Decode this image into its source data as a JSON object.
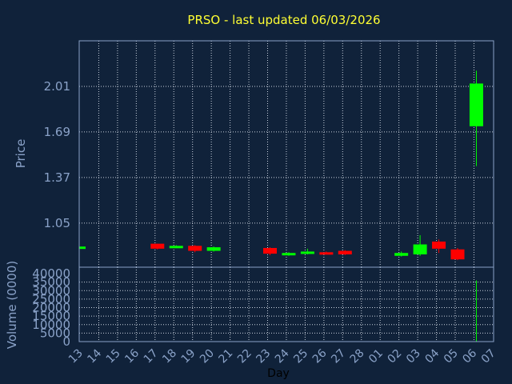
{
  "chart_data": {
    "type": "candlestick",
    "title": "PRSO - last updated 06/03/2026",
    "xlabel": "Day",
    "ylabel": "Price",
    "volume_label": "Volume (0000)",
    "x_ticks": [
      "13",
      "14",
      "15",
      "16",
      "17",
      "18",
      "19",
      "20",
      "21",
      "22",
      "23",
      "24",
      "25",
      "26",
      "27",
      "28",
      "01",
      "02",
      "03",
      "04",
      "05",
      "06",
      "07"
    ],
    "y_ticks": [
      1.05,
      1.37,
      1.69,
      2.01
    ],
    "y_tick_labels": [
      "1.05",
      "1.37",
      "1.69",
      "2.01"
    ],
    "ylim": [
      0.74,
      2.33
    ],
    "volume_ticks": [
      0,
      5000,
      10000,
      15000,
      20000,
      25000,
      30000,
      35000,
      40000
    ],
    "volume_tick_labels": [
      "0",
      "5000",
      "10000",
      "15000",
      "20000",
      "25000",
      "30000",
      "35000",
      "40000"
    ],
    "volume_lim": [
      0,
      40000
    ],
    "grid": true,
    "colors": {
      "up": "#00ff00",
      "down": "#ff0000",
      "title": "#ffff33",
      "axis_text": "#8aa2c8",
      "background": "#10223a"
    },
    "candles": [
      {
        "day": "13",
        "open": 0.885,
        "close": 0.885,
        "high": 0.885,
        "low": 0.885
      },
      {
        "day": "17",
        "open": 0.905,
        "close": 0.87,
        "high": 0.905,
        "low": 0.865
      },
      {
        "day": "18",
        "open": 0.885,
        "close": 0.89,
        "high": 0.895,
        "low": 0.88
      },
      {
        "day": "19",
        "open": 0.89,
        "close": 0.855,
        "high": 0.895,
        "low": 0.845
      },
      {
        "day": "20",
        "open": 0.855,
        "close": 0.88,
        "high": 0.885,
        "low": 0.85
      },
      {
        "day": "23",
        "open": 0.875,
        "close": 0.835,
        "high": 0.88,
        "low": 0.825
      },
      {
        "day": "24",
        "open": 0.825,
        "close": 0.84,
        "high": 0.845,
        "low": 0.82
      },
      {
        "day": "25",
        "open": 0.835,
        "close": 0.85,
        "high": 0.87,
        "low": 0.83
      },
      {
        "day": "26",
        "open": 0.845,
        "close": 0.84,
        "high": 0.85,
        "low": 0.83
      },
      {
        "day": "27",
        "open": 0.855,
        "close": 0.83,
        "high": 0.86,
        "low": 0.825
      },
      {
        "day": "02",
        "open": 0.82,
        "close": 0.84,
        "high": 0.85,
        "low": 0.815
      },
      {
        "day": "03",
        "open": 0.83,
        "close": 0.9,
        "high": 0.965,
        "low": 0.82
      },
      {
        "day": "04",
        "open": 0.92,
        "close": 0.87,
        "high": 0.935,
        "low": 0.84
      },
      {
        "day": "05",
        "open": 0.865,
        "close": 0.795,
        "high": 0.875,
        "low": 0.79
      },
      {
        "day": "06",
        "open": 1.73,
        "close": 2.03,
        "high": 2.12,
        "low": 1.45
      }
    ],
    "volume": [
      {
        "day": "06",
        "value": 36000
      }
    ]
  }
}
